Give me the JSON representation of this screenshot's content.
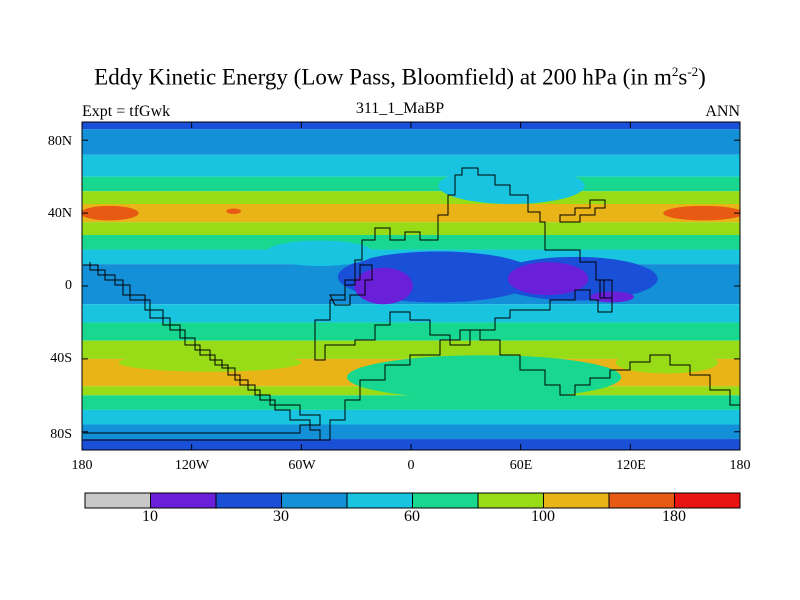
{
  "chart_data": {
    "type": "heatmap",
    "title": "Eddy Kinetic Energy (Low Pass, Bloomfield) at 200 hPa (in m",
    "title_units": [
      "2",
      "s",
      "-2",
      ")"
    ],
    "subtitle_left": "Expt = tfGwk",
    "subtitle_center": "311_1_MaBP",
    "subtitle_right": "ANN",
    "x_ticks": [
      "180",
      "120W",
      "60W",
      "0",
      "60E",
      "120E",
      "180"
    ],
    "x_tick_values": [
      -180,
      -120,
      -60,
      0,
      60,
      120,
      180
    ],
    "y_ticks": [
      "80N",
      "40N",
      "0",
      "40S",
      "80S"
    ],
    "y_tick_values": [
      80,
      40,
      0,
      -40,
      -80
    ],
    "xlim": [
      -180,
      180
    ],
    "ylim": [
      -90,
      90
    ],
    "colorbar_labels": [
      "10",
      "30",
      "60",
      "100",
      "180"
    ],
    "colorbar_label_boundaries": [
      1,
      3,
      5,
      7,
      9
    ],
    "colorbar_colors": [
      "#c8c8c8",
      "#6a1fd8",
      "#1a4fd8",
      "#1490d8",
      "#18c4e0",
      "#18d890",
      "#98dc18",
      "#e8b418",
      "#e85a14",
      "#e81414"
    ],
    "zonal_bands": [
      {
        "lat_top": 90,
        "lat_bottom": 86,
        "level": 2
      },
      {
        "lat_top": 86,
        "lat_bottom": 72,
        "level": 3
      },
      {
        "lat_top": 72,
        "lat_bottom": 60,
        "level": 4
      },
      {
        "lat_top": 60,
        "lat_bottom": 52,
        "level": 5
      },
      {
        "lat_top": 52,
        "lat_bottom": 45,
        "level": 6
      },
      {
        "lat_top": 45,
        "lat_bottom": 35,
        "level": 7
      },
      {
        "lat_top": 35,
        "lat_bottom": 28,
        "level": 6
      },
      {
        "lat_top": 28,
        "lat_bottom": 20,
        "level": 5
      },
      {
        "lat_top": 20,
        "lat_bottom": 12,
        "level": 4
      },
      {
        "lat_top": 12,
        "lat_bottom": -10,
        "level": 3
      },
      {
        "lat_top": -10,
        "lat_bottom": -20,
        "level": 4
      },
      {
        "lat_top": -20,
        "lat_bottom": -30,
        "level": 5
      },
      {
        "lat_top": -30,
        "lat_bottom": -40,
        "level": 6
      },
      {
        "lat_top": -40,
        "lat_bottom": -55,
        "level": 7
      },
      {
        "lat_top": -55,
        "lat_bottom": -60,
        "level": 6
      },
      {
        "lat_top": -60,
        "lat_bottom": -68,
        "level": 5
      },
      {
        "lat_top": -68,
        "lat_bottom": -76,
        "level": 4
      },
      {
        "lat_top": -76,
        "lat_bottom": -84,
        "level": 3
      },
      {
        "lat_top": -84,
        "lat_bottom": -90,
        "level": 2
      }
    ],
    "features": [
      {
        "lon": 15,
        "lat": 5,
        "rx": 55,
        "ry": 14,
        "level": 2
      },
      {
        "lon": 90,
        "lat": 4,
        "rx": 45,
        "ry": 12,
        "level": 2
      },
      {
        "lon": -15,
        "lat": 0,
        "rx": 16,
        "ry": 10,
        "level": 1
      },
      {
        "lon": 75,
        "lat": 4,
        "rx": 22,
        "ry": 9,
        "level": 1
      },
      {
        "lon": 110,
        "lat": -6,
        "rx": 12,
        "ry": 3,
        "level": 1
      },
      {
        "lon": -165,
        "lat": 40,
        "rx": 16,
        "ry": 4,
        "level": 8
      },
      {
        "lon": -97,
        "lat": 41,
        "rx": 4,
        "ry": 1.5,
        "level": 8
      },
      {
        "lon": 160,
        "lat": 40,
        "rx": 22,
        "ry": 4,
        "level": 8
      },
      {
        "lon": 55,
        "lat": 55,
        "rx": 40,
        "ry": 10,
        "level": 4
      },
      {
        "lon": 40,
        "lat": -50,
        "rx": 75,
        "ry": 12,
        "level": 5
      },
      {
        "lon": 140,
        "lat": -42,
        "rx": 28,
        "ry": 6,
        "level": 6
      },
      {
        "lon": -110,
        "lat": -42,
        "rx": 50,
        "ry": 5,
        "level": 6
      },
      {
        "lon": -50,
        "lat": 18,
        "rx": 30,
        "ry": 7,
        "level": 4
      }
    ]
  }
}
